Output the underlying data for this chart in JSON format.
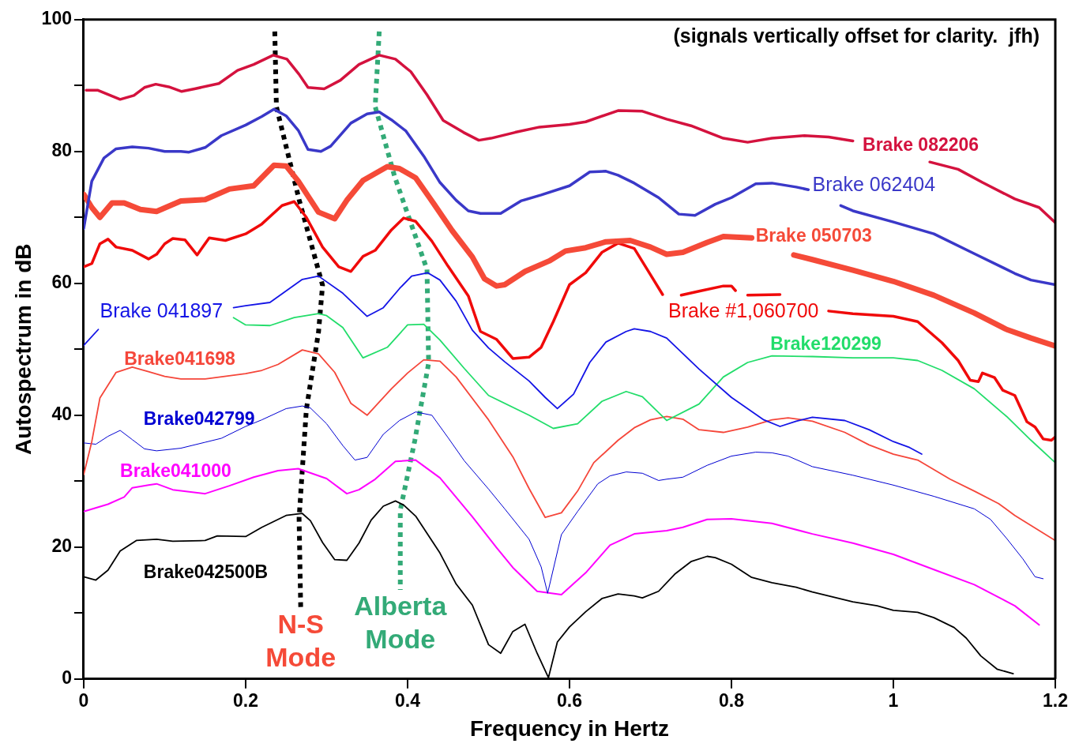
{
  "chart_data": {
    "type": "line",
    "xlabel": "Frequency in Hertz",
    "ylabel": "Autospectrum in dB",
    "xlim": [
      0,
      1.2
    ],
    "ylim": [
      0,
      100
    ],
    "xticks": [
      0,
      0.2,
      0.4,
      0.6,
      0.8,
      1,
      1.2
    ],
    "yticks": [
      0,
      {
        "value": 10,
        "label": null
      },
      20,
      {
        "value": 30,
        "label": null
      },
      40,
      {
        "value": 50,
        "label": null
      },
      60,
      {
        "value": 70,
        "label": null
      },
      80,
      {
        "value": 90,
        "label": null
      },
      100
    ],
    "grid": false,
    "legend": false,
    "marker": "none",
    "annotations": [
      "(signals vertically offset for clarity.  jfh)",
      {
        "text": "N-S Mode",
        "x": 0.268,
        "y": 10.8
      },
      {
        "text": "Alberta Mode",
        "x": 0.391,
        "y": 13.5
      }
    ],
    "series": [
      {
        "name": "Brake 082206",
        "color": "#d4123e",
        "x": [
          0.003,
          0.017,
          0.045,
          0.062,
          0.075,
          0.089,
          0.105,
          0.121,
          0.137,
          0.167,
          0.19,
          0.21,
          0.234,
          0.251,
          0.266,
          0.277,
          0.297,
          0.317,
          0.34,
          0.365,
          0.385,
          0.404,
          0.424,
          0.444,
          0.469,
          0.488,
          0.503,
          0.533,
          0.563,
          0.6,
          0.62,
          0.66,
          0.69,
          0.72,
          0.75,
          0.79,
          0.82,
          0.85,
          0.89,
          0.92,
          0.95,
          1.0,
          1.045,
          1.08,
          1.11,
          1.15,
          1.18,
          1.2
        ],
        "values": [
          89.3,
          89.3,
          87.9,
          88.5,
          89.7,
          90.2,
          89.8,
          89.1,
          89.5,
          90.3,
          92.3,
          93.2,
          94.6,
          94.0,
          91.7,
          89.7,
          89.5,
          90.8,
          93.2,
          94.6,
          94.0,
          92.1,
          88.6,
          84.7,
          82.9,
          81.7,
          82.0,
          82.9,
          83.7,
          84.1,
          84.5,
          86.2,
          86.1,
          84.9,
          83.9,
          82.0,
          81.4,
          82.0,
          82.4,
          82.2,
          81.6,
          null,
          78.4,
          77.3,
          75.3,
          72.8,
          71.5,
          69.2
        ]
      },
      {
        "name": "Brake 062404",
        "color": "#3a38c8",
        "x": [
          0,
          0.01,
          0.025,
          0.04,
          0.06,
          0.08,
          0.1,
          0.12,
          0.13,
          0.15,
          0.17,
          0.2,
          0.22,
          0.235,
          0.25,
          0.265,
          0.277,
          0.293,
          0.305,
          0.33,
          0.35,
          0.365,
          0.38,
          0.398,
          0.42,
          0.44,
          0.46,
          0.475,
          0.49,
          0.515,
          0.54,
          0.565,
          0.6,
          0.625,
          0.645,
          0.66,
          0.68,
          0.71,
          0.735,
          0.755,
          0.78,
          0.8,
          0.83,
          0.85,
          0.88,
          0.895,
          0.915,
          0.935,
          0.95,
          1.0,
          1.05,
          1.1,
          1.15,
          1.17,
          1.2
        ],
        "values": [
          68.3,
          75.5,
          79,
          80.4,
          80.7,
          80.5,
          80,
          80,
          79.9,
          80.6,
          82.4,
          84,
          85.3,
          86.4,
          85.4,
          83.2,
          80.3,
          80,
          80.8,
          84.3,
          85.7,
          86,
          84.8,
          83.1,
          79.3,
          75.3,
          72.6,
          71,
          70.6,
          70.6,
          72.5,
          73.4,
          74.8,
          76.9,
          77,
          76.4,
          75.2,
          73,
          70.5,
          70.3,
          72,
          73,
          75.1,
          75.2,
          74.6,
          74.2,
          null,
          71.8,
          71,
          69.3,
          67.5,
          64.5,
          61.5,
          60.5,
          59.8
        ]
      },
      {
        "name": "Brake 050703",
        "color": "#f54a38",
        "x": [
          0,
          0.01,
          0.02,
          0.035,
          0.05,
          0.07,
          0.09,
          0.12,
          0.15,
          0.18,
          0.21,
          0.235,
          0.25,
          0.265,
          0.29,
          0.31,
          0.325,
          0.345,
          0.375,
          0.39,
          0.41,
          0.43,
          0.455,
          0.48,
          0.495,
          0.51,
          0.52,
          0.545,
          0.575,
          0.595,
          0.62,
          0.645,
          0.675,
          0.7,
          0.72,
          0.74,
          0.77,
          0.79,
          0.825,
          0.85,
          0.877,
          0.9,
          0.95,
          1.0,
          1.05,
          1.1,
          1.14,
          1.17,
          1.2
        ],
        "values": [
          73.5,
          71.5,
          70,
          72.2,
          72.2,
          71.2,
          70.9,
          72.5,
          72.7,
          74.3,
          74.8,
          77.9,
          77.8,
          75.5,
          70.8,
          69.8,
          72.6,
          75.6,
          77.7,
          77.4,
          76,
          72.5,
          68,
          64,
          60.7,
          59.6,
          59.8,
          61.8,
          63.4,
          64.9,
          65.4,
          66.3,
          66.5,
          65.5,
          64.4,
          64.7,
          66.2,
          67.1,
          66.9,
          null,
          64.3,
          63.6,
          62,
          60.3,
          58.2,
          55.5,
          53,
          51.7,
          50.5
        ]
      },
      {
        "name": "Brake #1,060700",
        "color": "#f00a0a",
        "x": [
          0,
          0.01,
          0.02,
          0.03,
          0.04,
          0.06,
          0.08,
          0.09,
          0.1,
          0.11,
          0.125,
          0.14,
          0.155,
          0.175,
          0.2,
          0.22,
          0.245,
          0.26,
          0.275,
          0.295,
          0.315,
          0.33,
          0.345,
          0.36,
          0.38,
          0.395,
          0.41,
          0.43,
          0.45,
          0.475,
          0.49,
          0.51,
          0.53,
          0.55,
          0.565,
          0.58,
          0.6,
          0.62,
          0.64,
          0.66,
          0.68,
          0.7,
          0.715,
          0.72,
          0.738,
          0.76,
          0.79,
          0.8,
          0.805,
          0.815,
          0.82,
          0.86,
          0.88,
          0.92,
          0.95,
          1.0,
          1.03,
          1.06,
          1.08,
          1.095,
          1.105,
          1.11,
          1.125,
          1.135,
          1.15,
          1.165,
          1.175,
          1.185,
          1.195,
          1.2
        ],
        "values": [
          62.5,
          63,
          66,
          66.7,
          65.5,
          65,
          63.7,
          64.4,
          66,
          66.8,
          66.6,
          64.3,
          66.9,
          66.5,
          67.5,
          69,
          71.8,
          72.4,
          70,
          65.5,
          62.5,
          61.8,
          64.1,
          65,
          68.1,
          69.9,
          69.4,
          66.4,
          62.6,
          58.1,
          52.7,
          51.5,
          48.6,
          48.8,
          50.3,
          54.2,
          59.8,
          61.6,
          64.7,
          66.1,
          65.3,
          61.3,
          58.3,
          null,
          58.2,
          58.8,
          59.6,
          59.6,
          58.9,
          null,
          58.2,
          58.3,
          null,
          55.8,
          55.4,
          55,
          54.2,
          51,
          48.3,
          45.3,
          45.1,
          46.4,
          45.7,
          43.8,
          43,
          39,
          38.2,
          36.4,
          36.2,
          36.7
        ]
      },
      {
        "name": "Brake 041897",
        "color": "#1414e6",
        "x": [
          0,
          0.018,
          0.1,
          0.185,
          0.2,
          0.23,
          0.27,
          0.29,
          0.32,
          0.35,
          0.37,
          0.39,
          0.405,
          0.425,
          0.44,
          0.46,
          0.48,
          0.5,
          0.52,
          0.55,
          0.57,
          0.585,
          0.605,
          0.625,
          0.645,
          0.67,
          0.68,
          0.7,
          0.72,
          0.76,
          0.8,
          0.84,
          0.86,
          0.88,
          0.9,
          0.94,
          0.97,
          1.0,
          1.02,
          1.035
        ],
        "values": [
          50.6,
          53,
          null,
          56.3,
          56.6,
          57.1,
          60.6,
          61.1,
          58.5,
          55,
          56.3,
          59.2,
          61.1,
          61.6,
          60.5,
          57.3,
          52.9,
          50.2,
          48.1,
          45.2,
          42.7,
          41,
          43.2,
          48,
          51.1,
          52.7,
          53.1,
          52.7,
          51.7,
          47,
          42.7,
          39.3,
          38.3,
          39.1,
          39.7,
          39.2,
          37.8,
          36,
          35.1,
          34.1
        ]
      },
      {
        "name": "Brake120299",
        "color": "#22dd6a",
        "x": [
          0.185,
          0.2,
          0.23,
          0.26,
          0.29,
          0.3,
          0.32,
          0.345,
          0.375,
          0.4,
          0.42,
          0.44,
          0.47,
          0.5,
          0.55,
          0.58,
          0.61,
          0.64,
          0.67,
          0.69,
          0.72,
          0.76,
          0.79,
          0.82,
          0.85,
          0.9,
          0.95,
          1.0,
          1.03,
          1.06,
          1.1,
          1.14,
          1.17,
          1.2
        ],
        "values": [
          54.8,
          53.7,
          53.6,
          54.8,
          55.4,
          55.1,
          53.3,
          48.7,
          50.3,
          53.7,
          53.8,
          51.4,
          47.1,
          43,
          40,
          38,
          38.7,
          42.1,
          43.6,
          42.8,
          39.2,
          41.7,
          45.8,
          48,
          49,
          48.9,
          48.7,
          48.7,
          48.3,
          46.8,
          44,
          39.8,
          36.2,
          32.8
        ]
      },
      {
        "name": "Brake041698",
        "color": "#f5463a",
        "x": [
          0,
          0.01,
          0.02,
          0.04,
          0.06,
          0.08,
          0.1,
          0.12,
          0.15,
          0.2,
          0.22,
          0.24,
          0.27,
          0.29,
          0.31,
          0.33,
          0.35,
          0.38,
          0.4,
          0.42,
          0.44,
          0.46,
          0.5,
          0.53,
          0.55,
          0.57,
          0.59,
          0.61,
          0.63,
          0.66,
          0.68,
          0.7,
          0.72,
          0.74,
          0.76,
          0.79,
          0.82,
          0.85,
          0.87,
          0.9,
          0.94,
          0.97,
          1.0,
          1.03,
          1.07,
          1.1,
          1.13,
          1.15,
          1.2
        ],
        "values": [
          31,
          36,
          42.6,
          46.5,
          47.3,
          46.6,
          45.9,
          45.5,
          45.5,
          46.3,
          46.8,
          47.7,
          49.9,
          49.3,
          46.5,
          41.8,
          40,
          44,
          46.4,
          48.4,
          48.2,
          45.8,
          39.3,
          33.7,
          28.9,
          24.5,
          25.2,
          28.5,
          32.8,
          36.2,
          38.1,
          39.3,
          39.8,
          39.4,
          37.8,
          37.4,
          38.2,
          39.3,
          39.6,
          39.1,
          37.4,
          35.5,
          34.1,
          33.2,
          30.3,
          28.5,
          26.6,
          24.8,
          21
        ]
      },
      {
        "name": "Brake042799",
        "color": "#0000d2",
        "x": [
          0,
          0.015,
          0.03,
          0.045,
          0.06,
          0.075,
          0.09,
          0.12,
          0.15,
          0.17,
          0.2,
          0.22,
          0.25,
          0.27,
          0.28,
          0.3,
          0.32,
          0.335,
          0.35,
          0.37,
          0.39,
          0.41,
          0.43,
          0.45,
          0.47,
          0.5,
          0.52,
          0.55,
          0.565,
          0.573,
          0.59,
          0.61,
          0.635,
          0.65,
          0.67,
          0.69,
          0.71,
          0.72,
          0.74,
          0.77,
          0.8,
          0.83,
          0.85,
          0.87,
          0.9,
          0.95,
          1.0,
          1.05,
          1.1,
          1.12,
          1.14,
          1.16,
          1.175,
          1.185
        ],
        "values": [
          35.8,
          35.6,
          36.8,
          37.7,
          36.3,
          34.9,
          34.6,
          35,
          35.9,
          36.5,
          38.3,
          39.3,
          41,
          41.4,
          41.1,
          38.7,
          35.4,
          33.2,
          33.6,
          37.1,
          39.2,
          40.5,
          40,
          36.6,
          33.1,
          28.8,
          25.8,
          21.2,
          17,
          13,
          21.9,
          25.4,
          29.6,
          30.8,
          31.4,
          31.2,
          30.1,
          30.3,
          30.6,
          32.4,
          33.8,
          34.4,
          34.3,
          33.8,
          32.2,
          30.9,
          29.4,
          27.7,
          25.8,
          24.2,
          21.3,
          18.2,
          15.5,
          15.2
        ]
      },
      {
        "name": "Brake041000",
        "color": "#ff00ff",
        "x": [
          0,
          0.03,
          0.05,
          0.06,
          0.08,
          0.09,
          0.11,
          0.15,
          0.18,
          0.21,
          0.24,
          0.265,
          0.3,
          0.325,
          0.34,
          0.36,
          0.385,
          0.41,
          0.44,
          0.48,
          0.51,
          0.53,
          0.56,
          0.59,
          0.62,
          0.65,
          0.68,
          0.72,
          0.74,
          0.77,
          0.8,
          0.85,
          0.9,
          0.95,
          1.0,
          1.05,
          1.1,
          1.15,
          1.18
        ],
        "values": [
          25.4,
          26.5,
          27.6,
          29,
          29.4,
          29.6,
          28.7,
          28.1,
          29.3,
          30.6,
          31.6,
          31.9,
          30.4,
          28.1,
          28.7,
          30.3,
          33,
          33.2,
          30.5,
          24.6,
          19.9,
          16.9,
          13.3,
          12.8,
          16.1,
          20.3,
          22,
          22.5,
          23,
          24.2,
          24.3,
          23.6,
          22,
          20.6,
          18.9,
          16.6,
          14.3,
          11.1,
          8.2
        ]
      },
      {
        "name": "Brake042500B",
        "color": "#000000",
        "x": [
          0,
          0.015,
          0.03,
          0.045,
          0.065,
          0.09,
          0.11,
          0.15,
          0.165,
          0.2,
          0.22,
          0.25,
          0.27,
          0.28,
          0.295,
          0.31,
          0.325,
          0.34,
          0.355,
          0.37,
          0.385,
          0.395,
          0.41,
          0.44,
          0.46,
          0.48,
          0.5,
          0.515,
          0.53,
          0.545,
          0.56,
          0.574,
          0.585,
          0.6,
          0.62,
          0.64,
          0.66,
          0.68,
          0.69,
          0.71,
          0.73,
          0.75,
          0.77,
          0.78,
          0.8,
          0.825,
          0.85,
          0.88,
          0.9,
          0.95,
          0.98,
          1.0,
          1.03,
          1.05,
          1.075,
          1.09,
          1.108,
          1.128,
          1.148
        ],
        "values": [
          15.5,
          15,
          16.5,
          19.4,
          21,
          21.2,
          20.9,
          21,
          21.7,
          21.6,
          23,
          24.8,
          25.1,
          24,
          20.7,
          18.1,
          18,
          20.6,
          24.1,
          26.2,
          27,
          26.4,
          24.7,
          19.1,
          14.4,
          11.2,
          5.2,
          3.9,
          7.2,
          8.3,
          3.9,
          0.2,
          5.6,
          7.9,
          10.2,
          12.2,
          12.9,
          12.6,
          12.3,
          13.3,
          15.9,
          17.8,
          18.6,
          18.4,
          17.4,
          15.4,
          14.6,
          13.9,
          13.2,
          11.7,
          11.1,
          10.4,
          10.1,
          9.3,
          7.8,
          6.2,
          3.5,
          1.5,
          0.8
        ]
      },
      {
        "color": "#000000",
        "line_style": "dotted",
        "x": [
          0.236,
          0.238,
          0.266,
          0.295,
          0.29,
          0.275,
          0.266,
          0.268
        ],
        "values": [
          98.2,
          86.8,
          72.7,
          59.7,
          52.6,
          40.9,
          24.4,
          10.8
        ]
      },
      {
        "color": "#33aa77",
        "line_style": "dotted",
        "x": [
          0.365,
          0.36,
          0.384,
          0.424,
          0.426,
          0.409,
          0.391,
          0.391
        ],
        "values": [
          98.2,
          86.8,
          76.2,
          62.1,
          47.9,
          36.2,
          25.6,
          13.5
        ]
      }
    ]
  }
}
